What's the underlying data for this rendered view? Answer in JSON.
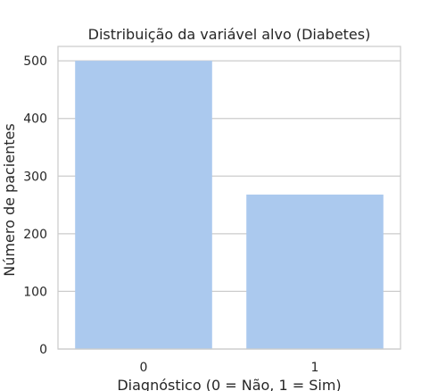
{
  "chart_data": {
    "type": "bar",
    "title": "Distribuição da variável alvo (Diabetes)",
    "xlabel": "Diagnóstico (0 = Não, 1 = Sim)",
    "ylabel": "Número de pacientes",
    "categories": [
      "0",
      "1"
    ],
    "values": [
      500,
      268
    ],
    "ylim": [
      0,
      525
    ],
    "yticks": [
      0,
      100,
      200,
      300,
      400,
      500
    ],
    "grid": true,
    "bar_color": "#abc9ee",
    "grid_color": "#cccccc",
    "spine_color": "#cccccc"
  }
}
